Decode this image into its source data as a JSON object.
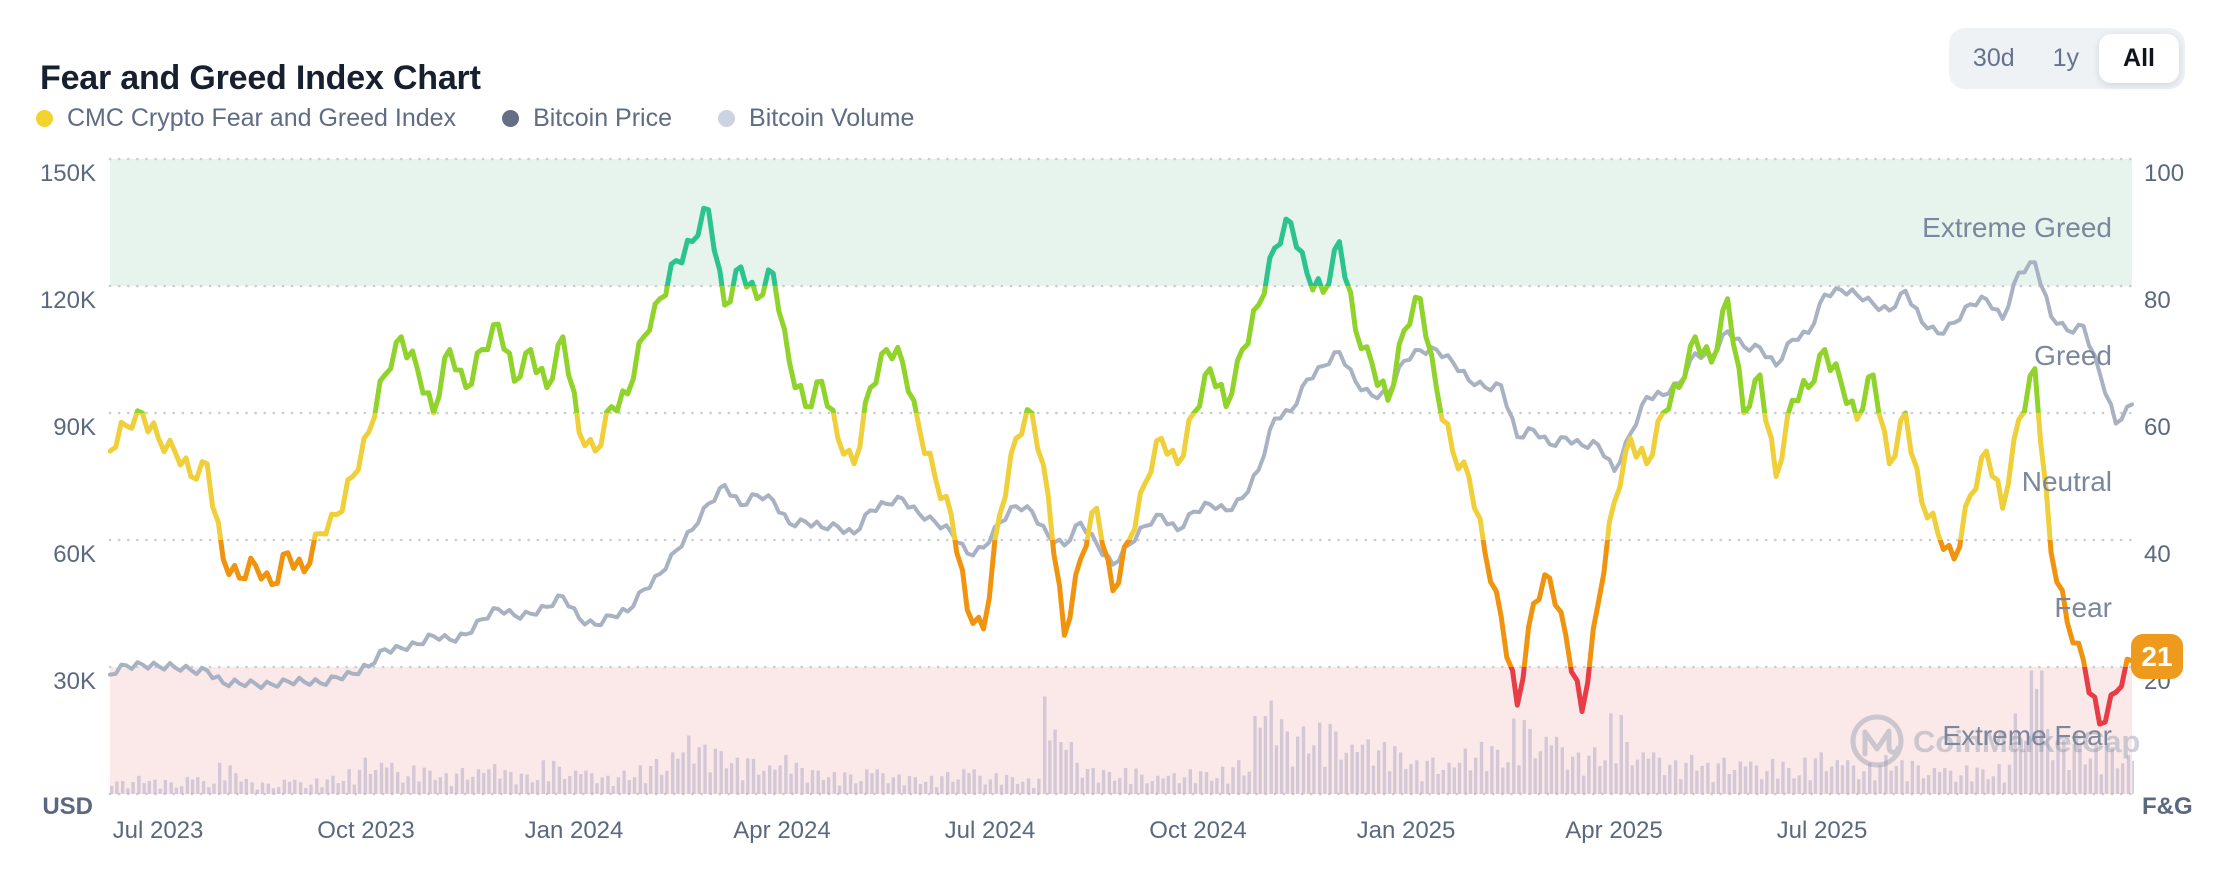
{
  "header": {
    "title": "Fear and Greed Index Chart",
    "ranges": [
      {
        "label": "30d",
        "active": false
      },
      {
        "label": "1y",
        "active": false
      },
      {
        "label": "All",
        "active": true
      }
    ]
  },
  "legend": {
    "items": [
      {
        "label": "CMC Crypto Fear and Greed Index",
        "color": "#F3D42F"
      },
      {
        "label": "Bitcoin Price",
        "color": "#646E84"
      },
      {
        "label": "Bitcoin Volume",
        "color": "#CBD3E3"
      }
    ]
  },
  "axes": {
    "left": {
      "title": "USD",
      "ticks": [
        "150K",
        "120K",
        "90K",
        "60K",
        "30K"
      ]
    },
    "right": {
      "title": "F&G",
      "ticks": [
        "100",
        "80",
        "60",
        "40",
        "20"
      ]
    },
    "x": {
      "ticks": [
        "Jul 2023",
        "Oct 2023",
        "Jan 2024",
        "Apr 2024",
        "Jul 2024",
        "Oct 2024",
        "Jan 2025",
        "Apr 2025",
        "Jul 2025"
      ]
    }
  },
  "zones": [
    {
      "label": "Extreme Greed",
      "range": [
        80,
        100
      ],
      "band_color": "#E7F4ED",
      "line_color": "#2BC38E"
    },
    {
      "label": "Greed",
      "range": [
        60,
        80
      ],
      "band_color": "#FFFFFF",
      "line_color": "#8FD32B"
    },
    {
      "label": "Neutral",
      "range": [
        40,
        60
      ],
      "band_color": "#FFFFFF",
      "line_color": "#EFCF3A"
    },
    {
      "label": "Fear",
      "range": [
        20,
        40
      ],
      "band_color": "#FFFFFF",
      "line_color": "#F0930F"
    },
    {
      "label": "Extreme Fear",
      "range": [
        0,
        20
      ],
      "band_color": "#FBE9E9",
      "line_color": "#E63D47"
    }
  ],
  "current_value": {
    "label": "21",
    "value": 21,
    "badge_color": "#EE9B1D"
  },
  "watermark": {
    "text": "CoinMarketCap"
  },
  "colors": {
    "btc_line": "#A9B2C3",
    "volume_bar": "#B5ADC6",
    "gridline": "#C8CDD6",
    "background": "#FFFFFF"
  },
  "chart_data": {
    "type": "line",
    "title": "Fear and Greed Index Chart",
    "x_start": "2023-06-10",
    "x_end": "2025-11-17",
    "sampling": "weekly",
    "x_tick_labels": [
      "Jul 2023",
      "Oct 2023",
      "Jan 2024",
      "Apr 2024",
      "Jul 2024",
      "Oct 2024",
      "Jan 2025",
      "Apr 2025",
      "Jul 2025"
    ],
    "right_axis": {
      "label": "F&G",
      "range": [
        0,
        100
      ],
      "shown_ticks": [
        20,
        40,
        60,
        80,
        100
      ]
    },
    "left_axis": {
      "label": "USD",
      "unit": "thousand USD",
      "shown_ticks": [
        30,
        60,
        90,
        120,
        150
      ]
    },
    "legend_position": "top-left",
    "grid": "dotted-horizontal",
    "current_fg_value": 21,
    "series": [
      {
        "name": "CMC Crypto Fear and Greed Index",
        "axis": "right",
        "values": [
          54,
          58,
          60,
          56,
          54,
          50,
          52,
          37,
          34,
          36,
          33,
          38,
          35,
          41,
          44,
          50,
          57,
          66,
          72,
          67,
          60,
          70,
          64,
          70,
          74,
          65,
          70,
          64,
          72,
          57,
          54,
          61,
          63,
          72,
          78,
          84,
          87,
          92,
          77,
          83,
          78,
          82,
          68,
          61,
          65,
          56,
          52,
          64,
          70,
          68,
          58,
          50,
          44,
          29,
          26,
          44,
          56,
          60,
          47,
          25,
          37,
          45,
          32,
          40,
          49,
          56,
          52,
          60,
          67,
          61,
          70,
          77,
          86,
          90,
          82,
          79,
          87,
          73,
          68,
          62,
          73,
          78,
          64,
          54,
          50,
          38,
          28,
          14,
          30,
          34,
          25,
          13,
          30,
          46,
          56,
          52,
          60,
          64,
          72,
          68,
          78,
          60,
          66,
          50,
          62,
          64,
          70,
          65,
          59,
          66,
          52,
          60,
          46,
          41,
          37,
          47,
          54,
          45,
          59,
          67,
          38,
          27,
          21,
          11,
          16,
          21
        ]
      },
      {
        "name": "Bitcoin Price",
        "axis": "left",
        "unit": "thousand USD",
        "values": [
          28.2,
          30.4,
          30.6,
          30.2,
          29.9,
          29.3,
          29.2,
          26.2,
          26.1,
          26.0,
          25.9,
          26.6,
          26.5,
          26.2,
          27.6,
          28.4,
          30.1,
          34.2,
          34.5,
          35.4,
          37.3,
          36.5,
          37.7,
          41.3,
          43.7,
          42.2,
          42.6,
          44.2,
          46.7,
          41.5,
          40.0,
          42.1,
          43.1,
          48.3,
          52.0,
          57.5,
          62.4,
          68.6,
          73.0,
          68.2,
          70.6,
          69.4,
          63.9,
          64.3,
          63.0,
          63.2,
          61.5,
          67.0,
          68.5,
          69.8,
          66.3,
          64.3,
          61.8,
          56.8,
          58.2,
          64.1,
          68.0,
          66.8,
          61.0,
          58.7,
          64.1,
          59.1,
          54.2,
          58.9,
          63.3,
          65.9,
          62.3,
          66.7,
          68.4,
          67.0,
          69.9,
          76.5,
          88.7,
          90.4,
          97.9,
          101.1,
          104.4,
          97.4,
          94.2,
          94.5,
          102.3,
          104.8,
          105.0,
          102.1,
          97.7,
          96.1,
          96.6,
          84.3,
          86.0,
          82.6,
          84.2,
          82.4,
          82.5,
          76.3,
          85.1,
          93.8,
          94.2,
          97.0,
          104.1,
          103.2,
          109.3,
          105.7,
          105.5,
          101.2,
          107.3,
          108.9,
          118.0,
          119.1,
          117.9,
          115.8,
          114.2,
          118.9,
          111.5,
          108.8,
          111.3,
          115.7,
          116.9,
          112.2,
          123.2,
          125.6,
          112.8,
          109.5,
          110.6,
          99.5,
          87.5,
          92.0
        ]
      },
      {
        "name": "Bitcoin Volume",
        "axis": "hidden",
        "unit": "relative 0-100",
        "values": [
          12,
          10,
          14,
          11,
          9,
          13,
          10,
          24,
          16,
          9,
          8,
          11,
          9,
          12,
          14,
          19,
          28,
          24,
          17,
          22,
          18,
          16,
          20,
          19,
          23,
          17,
          15,
          26,
          21,
          18,
          16,
          14,
          18,
          22,
          27,
          32,
          45,
          38,
          33,
          28,
          27,
          22,
          30,
          20,
          18,
          17,
          15,
          19,
          16,
          15,
          13,
          14,
          17,
          19,
          14,
          16,
          13,
          12,
          75,
          40,
          24,
          20,
          17,
          20,
          15,
          14,
          16,
          19,
          17,
          21,
          26,
          60,
          72,
          48,
          52,
          55,
          48,
          38,
          42,
          40,
          32,
          26,
          28,
          24,
          35,
          40,
          34,
          58,
          50,
          44,
          36,
          32,
          36,
          62,
          40,
          32,
          28,
          26,
          30,
          24,
          28,
          25,
          22,
          27,
          20,
          28,
          32,
          26,
          22,
          24,
          30,
          26,
          22,
          20,
          18,
          22,
          19,
          23,
          62,
          95,
          50,
          42,
          38,
          40,
          36,
          30
        ]
      }
    ]
  }
}
